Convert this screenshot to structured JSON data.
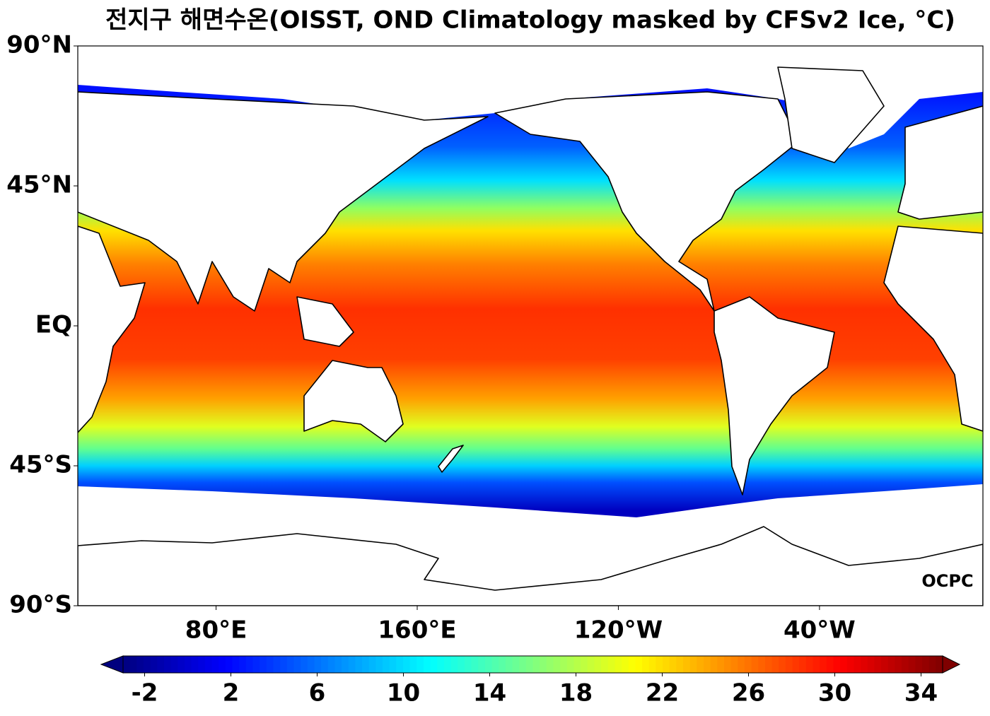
{
  "map": {
    "title": "전지구 해면수온(OISST, OND Climatology masked by CFSv2 Ice, °C)",
    "lon_range": [
      25,
      385
    ],
    "lat_range": [
      -90,
      90
    ],
    "lat_ticks": [
      {
        "value": 90,
        "label": "90°N"
      },
      {
        "value": 45,
        "label": "45°N"
      },
      {
        "value": 0,
        "label": "EQ"
      },
      {
        "value": -45,
        "label": "45°S"
      },
      {
        "value": -90,
        "label": "90°S"
      }
    ],
    "lon_ticks": [
      {
        "value": 80,
        "label": "80°E"
      },
      {
        "value": 160,
        "label": "160°E"
      },
      {
        "value": 240,
        "label": "120°W"
      },
      {
        "value": 320,
        "label": "40°W"
      }
    ],
    "colorbar": {
      "range": [
        -3,
        35
      ],
      "ticks": [
        -2,
        2,
        6,
        10,
        14,
        18,
        22,
        26,
        30,
        34
      ]
    },
    "logo": "OCPC"
  }
}
